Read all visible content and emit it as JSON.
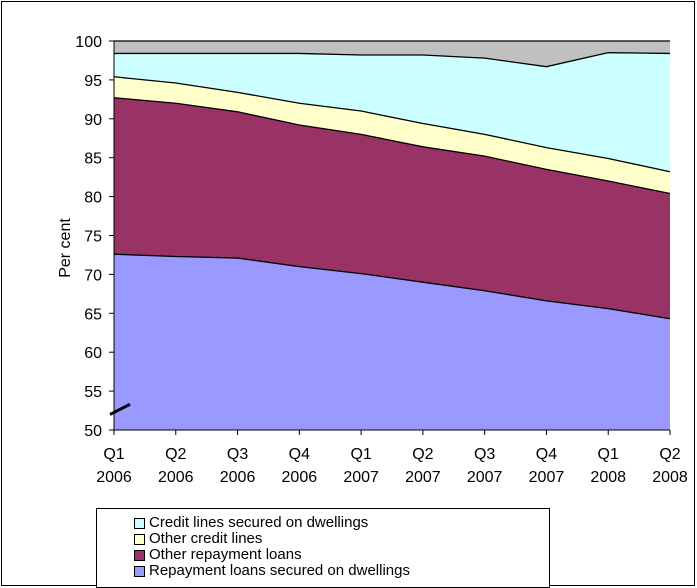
{
  "chart_data": {
    "type": "area",
    "stacked": true,
    "categories": [
      {
        "q": "Q1",
        "y": "2006"
      },
      {
        "q": "Q2",
        "y": "2006"
      },
      {
        "q": "Q3",
        "y": "2006"
      },
      {
        "q": "Q4",
        "y": "2006"
      },
      {
        "q": "Q1",
        "y": "2007"
      },
      {
        "q": "Q2",
        "y": "2007"
      },
      {
        "q": "Q3",
        "y": "2007"
      },
      {
        "q": "Q4",
        "y": "2007"
      },
      {
        "q": "Q1",
        "y": "2008"
      },
      {
        "q": "Q2",
        "y": "2008"
      }
    ],
    "ylabel": "Per cent",
    "ylim": [
      50,
      100
    ],
    "yticks": [
      "50",
      "55",
      "60",
      "65",
      "70",
      "75",
      "80",
      "85",
      "90",
      "95",
      "100"
    ],
    "axis_break": true,
    "series": [
      {
        "name": "Repayment loans secured on dwellings",
        "color": "#9999ff",
        "values": [
          72.6,
          72.3,
          72.1,
          71.0,
          70.1,
          69.0,
          67.9,
          66.6,
          65.6,
          64.3
        ]
      },
      {
        "name": "Other repayment loans",
        "color": "#993366",
        "values": [
          20.1,
          19.7,
          18.8,
          18.2,
          17.9,
          17.4,
          17.3,
          16.9,
          16.4,
          16.1
        ]
      },
      {
        "name": "Other credit lines",
        "color": "#ffffcc",
        "values": [
          2.7,
          2.6,
          2.5,
          2.8,
          3.0,
          3.0,
          2.8,
          2.8,
          2.9,
          2.8
        ]
      },
      {
        "name": "Credit lines secured on dwellings",
        "color": "#ccffff",
        "values": [
          3.0,
          3.8,
          5.0,
          6.4,
          7.2,
          8.8,
          9.8,
          10.4,
          13.6,
          15.2
        ]
      },
      {
        "name": "",
        "color": "#c0c0c0",
        "values": [
          1.6,
          1.6,
          1.6,
          1.6,
          1.8,
          1.8,
          2.2,
          3.3,
          1.5,
          1.6
        ]
      }
    ],
    "legend_order": [
      3,
      2,
      1,
      0
    ],
    "legend_position": "bottom"
  }
}
